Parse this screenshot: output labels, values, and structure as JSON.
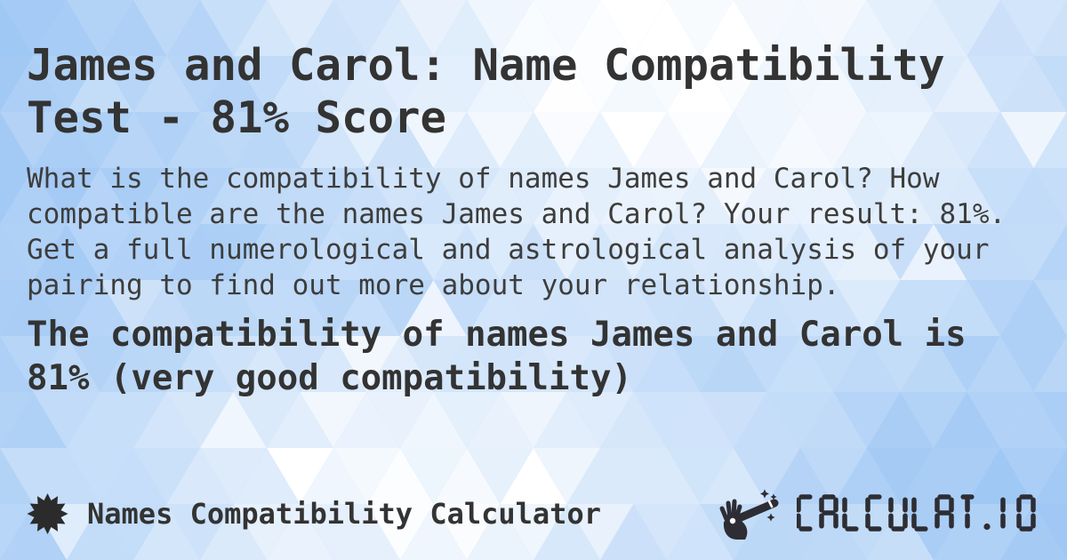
{
  "content": {
    "title_lines": [
      "James and Carol: Name Compatibility",
      "Test - 81% Score"
    ],
    "description_lines": [
      "What is the compatibility of names James and Carol? How",
      "compatible are the names James and Carol? Your result: 81%.",
      "Get a full numerological and astrological analysis of your",
      "pairing to find out more about your relationship."
    ],
    "statement_lines": [
      "The compatibility of names James and Carol is",
      "81% (very good compatibility)"
    ],
    "score_percent": "81%"
  },
  "footer": {
    "site_label": "Names Compatibility Calculator",
    "logo_text": "CALCULAT.IO"
  },
  "icons": {
    "badge": "starburst-icon",
    "logo_mark": "magic-wand-hand-icon"
  },
  "colors": {
    "text_title": "#333333",
    "text_body": "#3d3d3d",
    "badge": "#2b2b2b",
    "logo": "#2d2d33",
    "pattern_base": "#8cbcf2",
    "pattern_light": "#ffffff"
  }
}
